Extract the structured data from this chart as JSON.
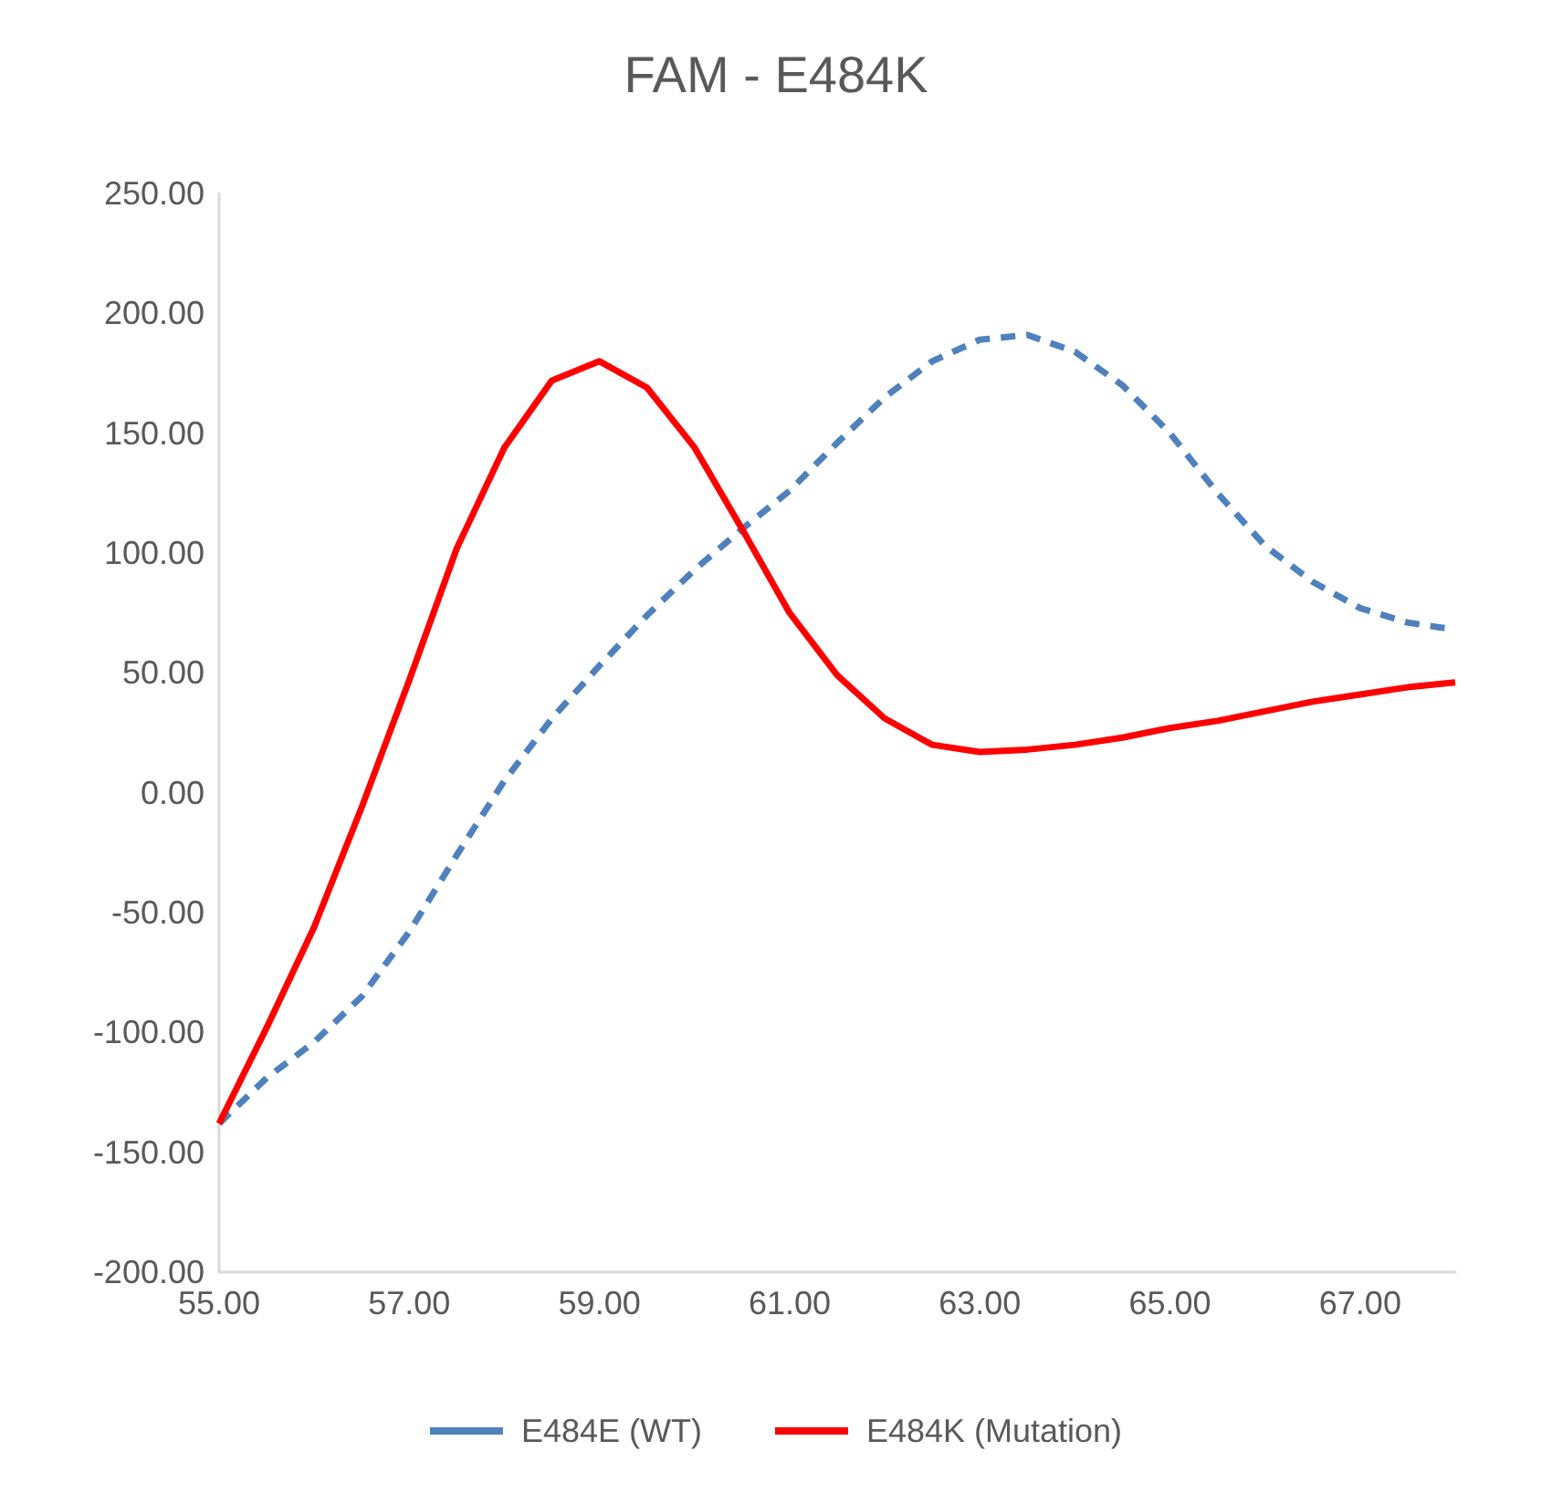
{
  "chart_data": {
    "type": "line",
    "title": "FAM - E484K",
    "x": [
      55,
      55.5,
      56,
      56.5,
      57,
      57.5,
      58,
      58.5,
      59,
      59.5,
      60,
      60.5,
      61,
      61.5,
      62,
      62.5,
      63,
      63.5,
      64,
      64.5,
      65,
      65.5,
      66,
      66.5,
      67,
      67.5,
      68
    ],
    "series": [
      {
        "name": "E484E (WT)",
        "color": "#4f81bd",
        "line_style": "dashed",
        "values": [
          -138,
          -119,
          -104,
          -85,
          -58,
          -26,
          5,
          31,
          53,
          74,
          93,
          110,
          126,
          146,
          165,
          180,
          189,
          191,
          184,
          170,
          150,
          125,
          103,
          88,
          77,
          71,
          68
        ]
      },
      {
        "name": "E484K (Mutation)",
        "color": "#ff0000",
        "line_style": "solid",
        "values": [
          -138,
          -98,
          -56,
          -6,
          47,
          102,
          144,
          172,
          180,
          169,
          144,
          110,
          75,
          49,
          31,
          20,
          17,
          18,
          20,
          23,
          27,
          30,
          34,
          38,
          41,
          44,
          46
        ]
      }
    ],
    "xlim": [
      55,
      68
    ],
    "xticks": [
      {
        "value": 55,
        "label": "55.00"
      },
      {
        "value": 57,
        "label": "57.00"
      },
      {
        "value": 59,
        "label": "59.00"
      },
      {
        "value": 61,
        "label": "61.00"
      },
      {
        "value": 63,
        "label": "63.00"
      },
      {
        "value": 65,
        "label": "65.00"
      },
      {
        "value": 67,
        "label": "67.00"
      }
    ],
    "ylim": [
      -200,
      250
    ],
    "yticks": [
      {
        "value": -200,
        "label": "-200.00"
      },
      {
        "value": -150,
        "label": "-150.00"
      },
      {
        "value": -100,
        "label": "-100.00"
      },
      {
        "value": -50,
        "label": "-50.00"
      },
      {
        "value": 0,
        "label": "0.00"
      },
      {
        "value": 50,
        "label": "50.00"
      },
      {
        "value": 100,
        "label": "100.00"
      },
      {
        "value": 150,
        "label": "150.00"
      },
      {
        "value": 200,
        "label": "200.00"
      },
      {
        "value": 250,
        "label": "250.00"
      }
    ],
    "grid": false,
    "legend": "bottom",
    "marker": "none"
  }
}
